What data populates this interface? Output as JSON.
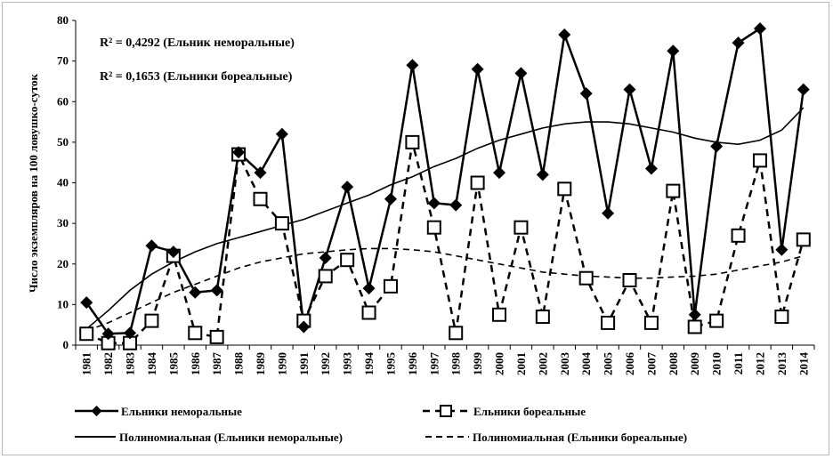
{
  "chart_data": {
    "type": "line",
    "ylabel": "Число экземпляров на 100 ловушко-суток",
    "xlabel": "",
    "ylim": [
      0,
      80
    ],
    "y_ticks": [
      0,
      10,
      20,
      30,
      40,
      50,
      60,
      70,
      80
    ],
    "grid": false,
    "legend_position": "bottom",
    "categories": [
      "1981",
      "1982",
      "1983",
      "1984",
      "1985",
      "1986",
      "1987",
      "1988",
      "1989",
      "1990",
      "1991",
      "1992",
      "1993",
      "1994",
      "1995",
      "1996",
      "1997",
      "1998",
      "1999",
      "2000",
      "2001",
      "2002",
      "2003",
      "2004",
      "2005",
      "2006",
      "2007",
      "2008",
      "2009",
      "2010",
      "2011",
      "2012",
      "2013",
      "2014"
    ],
    "series": [
      {
        "name": "Ельники неморальные",
        "style": "solid-diamond",
        "color": "#000000",
        "values": [
          10.5,
          2.8,
          3,
          24.5,
          23,
          13,
          13.5,
          47.5,
          42.5,
          52,
          4.5,
          21.5,
          39,
          14,
          36,
          69,
          35,
          34.5,
          68,
          42.5,
          67,
          42,
          76.5,
          62,
          32.5,
          63,
          43.5,
          72.5,
          7.5,
          49,
          74.5,
          78,
          23.5,
          63
        ]
      },
      {
        "name": "Ельники бореальные",
        "style": "dashed-open-square",
        "color": "#000000",
        "values": [
          2.8,
          0.5,
          0.5,
          6,
          22,
          3,
          2,
          47,
          36,
          30,
          6,
          17,
          21,
          8,
          14.5,
          50,
          29,
          3,
          40,
          7.5,
          29,
          7,
          38.5,
          16.5,
          5.5,
          16,
          5.5,
          38,
          4.5,
          6,
          27,
          45.5,
          7,
          26
        ]
      },
      {
        "name": "Полиномиальная (Ельники неморальные)",
        "style": "solid-trend",
        "color": "#000000",
        "values": [
          4,
          8.5,
          13.5,
          17.5,
          20.5,
          23,
          25,
          26.5,
          28,
          29.5,
          31,
          33,
          35,
          37,
          39.5,
          41.5,
          44,
          46,
          48.5,
          50.5,
          52,
          53.5,
          54.5,
          55,
          55,
          54.5,
          53.5,
          52.5,
          51,
          50,
          49.5,
          50.5,
          53,
          58.5
        ]
      },
      {
        "name": "Полиномиальная (Ельники бореальные)",
        "style": "dashed-trend",
        "color": "#000000",
        "values": [
          3.5,
          5.5,
          8,
          10.5,
          13,
          15,
          17,
          19,
          20.5,
          21.5,
          22.5,
          23,
          23.5,
          23.8,
          23.8,
          23.5,
          23,
          22,
          21,
          20,
          19,
          18,
          17.5,
          17,
          16.8,
          16.5,
          16.5,
          16.8,
          17,
          17.5,
          18.5,
          19.5,
          20.5,
          22
        ]
      }
    ],
    "annotations": [
      "R² = 0,4292 (Ельник неморальные)",
      "R² = 0,1653 (Ельники бореальные)"
    ]
  },
  "legend": {
    "items": [
      "Ельники неморальные",
      "Ельники бореальные",
      "Полиномиальная (Ельники неморальные)",
      "Полиномиальная (Ельники бореальные)"
    ]
  }
}
